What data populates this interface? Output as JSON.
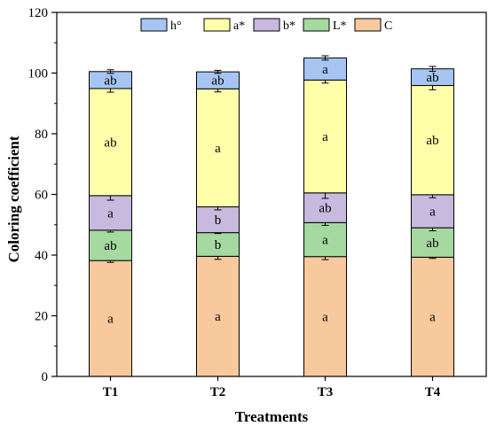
{
  "chart_data": {
    "type": "bar",
    "stacked": true,
    "title": "",
    "xlabel": "Treatments",
    "ylabel": "Coloring coefficient",
    "ylim": [
      0,
      120
    ],
    "yticks": [
      0,
      20,
      40,
      60,
      80,
      100,
      120
    ],
    "categories": [
      "T1",
      "T2",
      "T3",
      "T4"
    ],
    "legend_position": "top",
    "legend_order": [
      "h°",
      "a*",
      "b*",
      "L*",
      "C"
    ],
    "grid": false,
    "series": [
      {
        "name": "C",
        "color": "#F9C99E",
        "values": [
          38.2,
          39.6,
          39.5,
          39.3
        ],
        "errors": [
          0.6,
          1.0,
          1.0,
          0.4
        ],
        "labels": [
          "a",
          "a",
          "a",
          "a"
        ]
      },
      {
        "name": "L*",
        "color": "#A6D9A0",
        "values": [
          10.0,
          7.8,
          11.2,
          9.7
        ],
        "errors": [
          0.6,
          0.3,
          0.9,
          1.0
        ],
        "labels": [
          "ab",
          "b",
          "a",
          "ab"
        ]
      },
      {
        "name": "b*",
        "color": "#C8B9DE",
        "values": [
          11.4,
          8.5,
          9.8,
          10.9
        ],
        "errors": [
          1.5,
          1.0,
          1.8,
          1.0
        ],
        "labels": [
          "a",
          "b",
          "ab",
          "a"
        ]
      },
      {
        "name": "a*",
        "color": "#FFFFAA",
        "values": [
          35.3,
          38.9,
          37.2,
          36.0
        ],
        "errors": [
          1.2,
          1.0,
          1.0,
          1.4
        ],
        "labels": [
          "ab",
          "a",
          "a",
          "ab"
        ]
      },
      {
        "name": "h°",
        "color": "#A7C5F2",
        "values": [
          5.6,
          5.6,
          7.3,
          5.5
        ],
        "errors": [
          0.6,
          0.5,
          0.7,
          0.8
        ],
        "labels": [
          "ab",
          "ab",
          "a",
          "ab"
        ]
      }
    ]
  }
}
